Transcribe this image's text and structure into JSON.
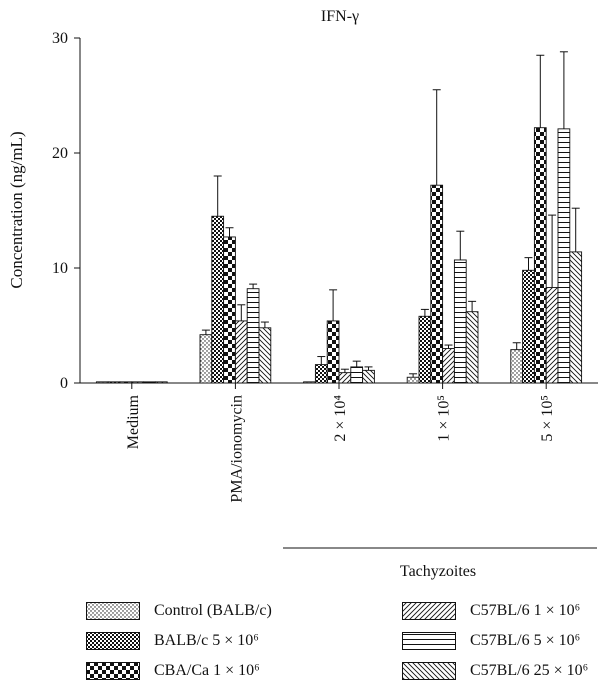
{
  "chart_data": {
    "type": "bar",
    "title": "IFN-γ",
    "ylabel": "Concentration (ng/mL)",
    "xlabel": "",
    "ylim": [
      0,
      30
    ],
    "yticks": [
      0,
      10,
      20,
      30
    ],
    "categories": [
      "Medium",
      "PMA/ionomycin",
      "2 × 10⁴",
      "1 × 10⁵",
      "5 × 10⁵"
    ],
    "group_label": "Tachyzoites",
    "series": [
      {
        "name": "Control (BALB/c)",
        "pattern": "dots",
        "values": [
          0.1,
          4.2,
          0.1,
          0.5,
          2.9
        ],
        "errors": [
          0.05,
          0.4,
          0.05,
          0.3,
          0.6
        ]
      },
      {
        "name": "BALB/c 5 × 10⁶",
        "pattern": "finecheck",
        "values": [
          0.1,
          14.5,
          1.6,
          5.8,
          9.8
        ],
        "errors": [
          0.05,
          3.5,
          0.7,
          0.6,
          1.1
        ]
      },
      {
        "name": "CBA/Ca 1 × 10⁶",
        "pattern": "check",
        "values": [
          0.1,
          12.7,
          5.4,
          17.2,
          22.2
        ],
        "errors": [
          0.05,
          0.8,
          2.7,
          8.3,
          6.3
        ]
      },
      {
        "name": "C57BL/6 1 × 10⁶",
        "pattern": "diag",
        "values": [
          0.1,
          5.4,
          0.9,
          3.0,
          8.3
        ],
        "errors": [
          0.05,
          1.4,
          0.3,
          0.3,
          6.3
        ]
      },
      {
        "name": "C57BL/6 5 × 10⁶",
        "pattern": "hlines",
        "values": [
          0.1,
          8.2,
          1.4,
          10.7,
          22.1
        ],
        "errors": [
          0.05,
          0.4,
          0.5,
          2.5,
          6.7
        ]
      },
      {
        "name": "C57BL/6 25 × 10⁶",
        "pattern": "adiag",
        "values": [
          0.1,
          4.8,
          1.1,
          6.2,
          11.4
        ],
        "errors": [
          0.05,
          0.5,
          0.3,
          0.9,
          3.8
        ]
      }
    ],
    "grid": false,
    "legend_position": "bottom"
  }
}
